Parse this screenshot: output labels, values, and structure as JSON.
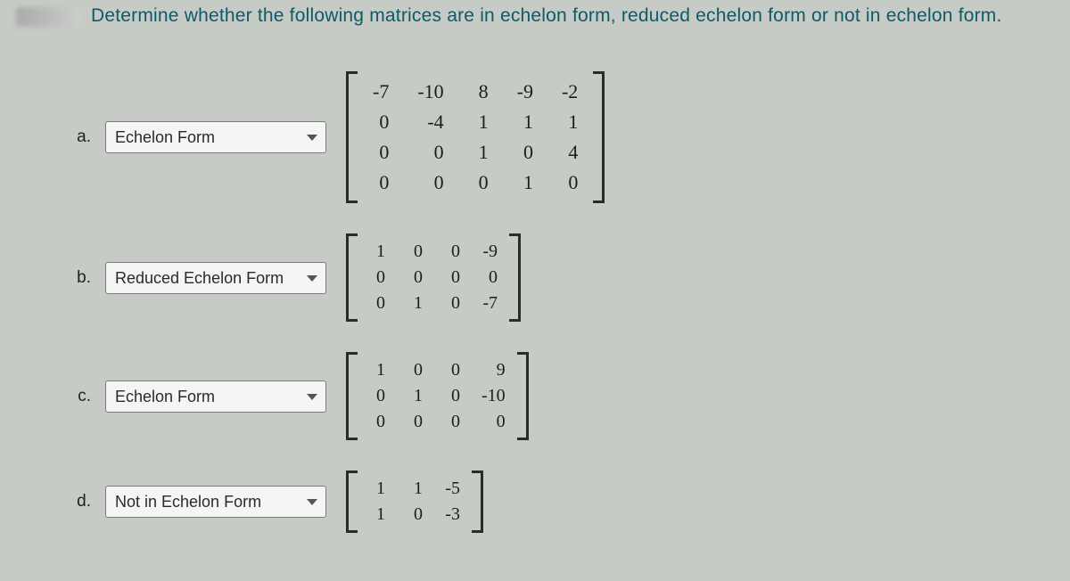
{
  "question": "Determine whether the following matrices are in echelon form, reduced echelon form or not in echelon form.",
  "options": [
    "Echelon Form",
    "Reduced Echelon Form",
    "Not in Echelon Form"
  ],
  "items": {
    "a": {
      "label": "a.",
      "selected": "Echelon Form",
      "matrix": [
        [
          "-7",
          "-10",
          "8",
          "-9",
          "-2"
        ],
        [
          "0",
          "-4",
          "1",
          "1",
          "1"
        ],
        [
          "0",
          "0",
          "1",
          "0",
          "4"
        ],
        [
          "0",
          "0",
          "0",
          "1",
          "0"
        ]
      ]
    },
    "b": {
      "label": "b.",
      "selected": "Reduced Echelon Form",
      "matrix": [
        [
          "1",
          "0",
          "0",
          "-9"
        ],
        [
          "0",
          "0",
          "0",
          "0"
        ],
        [
          "0",
          "1",
          "0",
          "-7"
        ]
      ]
    },
    "c": {
      "label": "c.",
      "selected": "Echelon Form",
      "matrix": [
        [
          "1",
          "0",
          "0",
          "9"
        ],
        [
          "0",
          "1",
          "0",
          "-10"
        ],
        [
          "0",
          "0",
          "0",
          "0"
        ]
      ]
    },
    "d": {
      "label": "d.",
      "selected": "Not in Echelon Form",
      "matrix": [
        [
          "1",
          "1",
          "-5"
        ],
        [
          "1",
          "0",
          "-3"
        ]
      ]
    }
  },
  "colors": {
    "background": "#c6cbc5",
    "question_text": "#0d5a6b",
    "matrix_text": "#1d1d1d"
  }
}
